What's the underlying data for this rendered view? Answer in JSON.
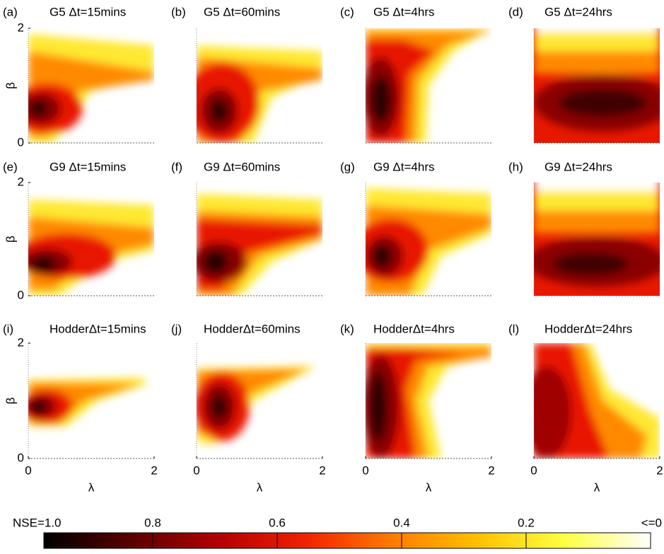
{
  "chart_data": [
    {
      "type": "heatmap",
      "label": "(a)",
      "title": "G5 Δt=15mins",
      "xlim": [
        0,
        2
      ],
      "ylim": [
        0,
        2
      ],
      "yticks": [
        0,
        2
      ],
      "y_label": "β"
    },
    {
      "type": "heatmap",
      "label": "(b)",
      "title": "G5 Δt=60mins",
      "xlim": [
        0,
        2
      ],
      "ylim": [
        0,
        2
      ]
    },
    {
      "type": "heatmap",
      "label": "(c)",
      "title": "G5 Δt=4hrs",
      "xlim": [
        0,
        2
      ],
      "ylim": [
        0,
        2
      ]
    },
    {
      "type": "heatmap",
      "label": "(d)",
      "title": "G5 Δt=24hrs",
      "xlim": [
        0,
        2
      ],
      "ylim": [
        0,
        2
      ]
    },
    {
      "type": "heatmap",
      "label": "(e)",
      "title": "G9 Δt=15mins",
      "xlim": [
        0,
        2
      ],
      "ylim": [
        0,
        2
      ],
      "yticks": [
        0,
        2
      ],
      "y_label": "β"
    },
    {
      "type": "heatmap",
      "label": "(f)",
      "title": "G9 Δt=60mins",
      "xlim": [
        0,
        2
      ],
      "ylim": [
        0,
        2
      ]
    },
    {
      "type": "heatmap",
      "label": "(g)",
      "title": "G9 Δt=4hrs",
      "xlim": [
        0,
        2
      ],
      "ylim": [
        0,
        2
      ]
    },
    {
      "type": "heatmap",
      "label": "(h)",
      "title": "G9 Δt=24hrs",
      "xlim": [
        0,
        2
      ],
      "ylim": [
        0,
        2
      ]
    },
    {
      "type": "heatmap",
      "label": "(i)",
      "title": "HodderΔt=15mins",
      "xlim": [
        0,
        2
      ],
      "ylim": [
        0,
        2
      ],
      "xticks": [
        0,
        2
      ],
      "yticks": [
        0,
        2
      ],
      "x_label": "λ",
      "y_label": "β"
    },
    {
      "type": "heatmap",
      "label": "(j)",
      "title": "HodderΔt=60mins",
      "xlim": [
        0,
        2
      ],
      "ylim": [
        0,
        2
      ],
      "xticks": [
        0,
        2
      ],
      "x_label": "λ"
    },
    {
      "type": "heatmap",
      "label": "(k)",
      "title": "HodderΔt=4hrs",
      "xlim": [
        0,
        2
      ],
      "ylim": [
        0,
        2
      ],
      "xticks": [
        0,
        2
      ],
      "x_label": "λ"
    },
    {
      "type": "heatmap",
      "label": "(l)",
      "title": "HodderΔt=24hrs",
      "xlim": [
        0,
        2
      ],
      "ylim": [
        0,
        2
      ],
      "xticks": [
        0,
        2
      ],
      "x_label": "λ"
    },
    {
      "type": "colorbar",
      "xlim": [
        1,
        0
      ],
      "xticks": [
        {
          "value": 1,
          "label": "NSE=1.0"
        },
        0.8,
        0.6,
        0.4,
        0.2,
        {
          "value": 0,
          "label": "<=0"
        }
      ],
      "colormap": [
        "#000000",
        "#5a0000",
        "#b00000",
        "#f02000",
        "#ff7a00",
        "#ffc000",
        "#ffff40",
        "#ffffff"
      ]
    }
  ]
}
